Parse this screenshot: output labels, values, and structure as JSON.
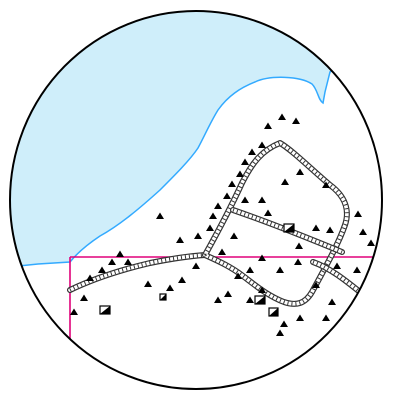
{
  "map": {
    "colors": {
      "water": "#cfeefa",
      "shoreline": "#33aaff",
      "land": "#ffffff",
      "boundary": "#e0007a",
      "road_casing": "#333333",
      "road_fill": "#ffffff",
      "symbol": "#000000",
      "frame": "#000000"
    },
    "features": [
      {
        "kind": "water-body",
        "label": "",
        "icon": "lake"
      },
      {
        "kind": "administrative-boundary",
        "label": "",
        "icon": "boundary-line"
      },
      {
        "kind": "road-network",
        "label": "",
        "icon": "railway-track"
      },
      {
        "kind": "buildings",
        "label": "",
        "icon": "building-square"
      },
      {
        "kind": "terrain-markers",
        "label": "",
        "icon": "triangle"
      }
    ]
  }
}
